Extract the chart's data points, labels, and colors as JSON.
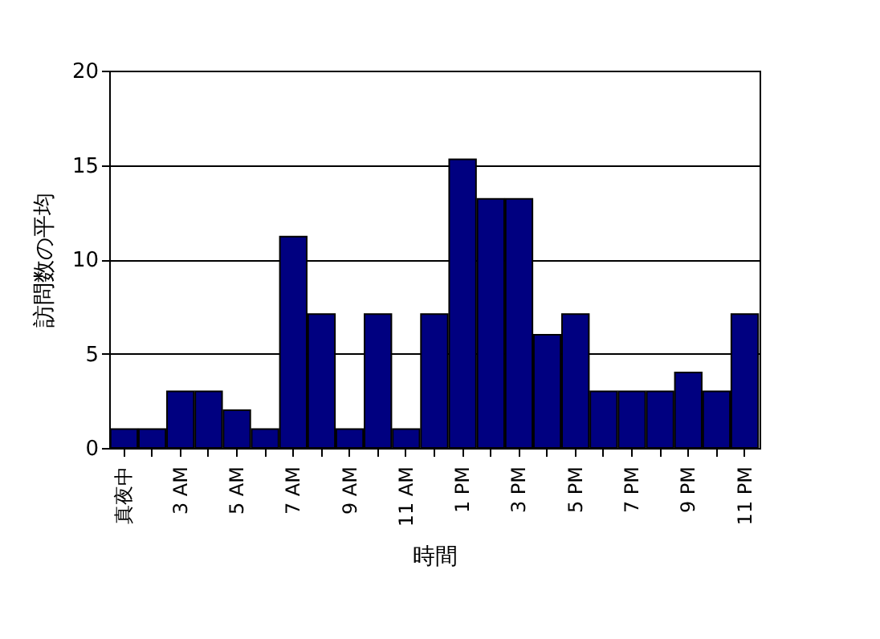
{
  "chart_data": {
    "type": "bar",
    "xlabel": "時間",
    "ylabel": "訪問数の平均",
    "categories": [
      "真夜中",
      null,
      "3 AM",
      null,
      "5 AM",
      null,
      "7 AM",
      null,
      "9 AM",
      null,
      "11 AM",
      null,
      "1 PM",
      null,
      "3 PM",
      null,
      "5 PM",
      null,
      "7 PM",
      null,
      "9 PM",
      null,
      "11 PM"
    ],
    "values": [
      1,
      1,
      3,
      3,
      2,
      1,
      11.2,
      7.1,
      1,
      7.1,
      1,
      7.1,
      15.3,
      13.2,
      13.2,
      6,
      7.1,
      3,
      3,
      3,
      4,
      3,
      7.1
    ],
    "color": "#000080",
    "ylim": [
      0,
      20
    ],
    "yticks": [
      0,
      5,
      10,
      15,
      20
    ],
    "grid": "y"
  }
}
